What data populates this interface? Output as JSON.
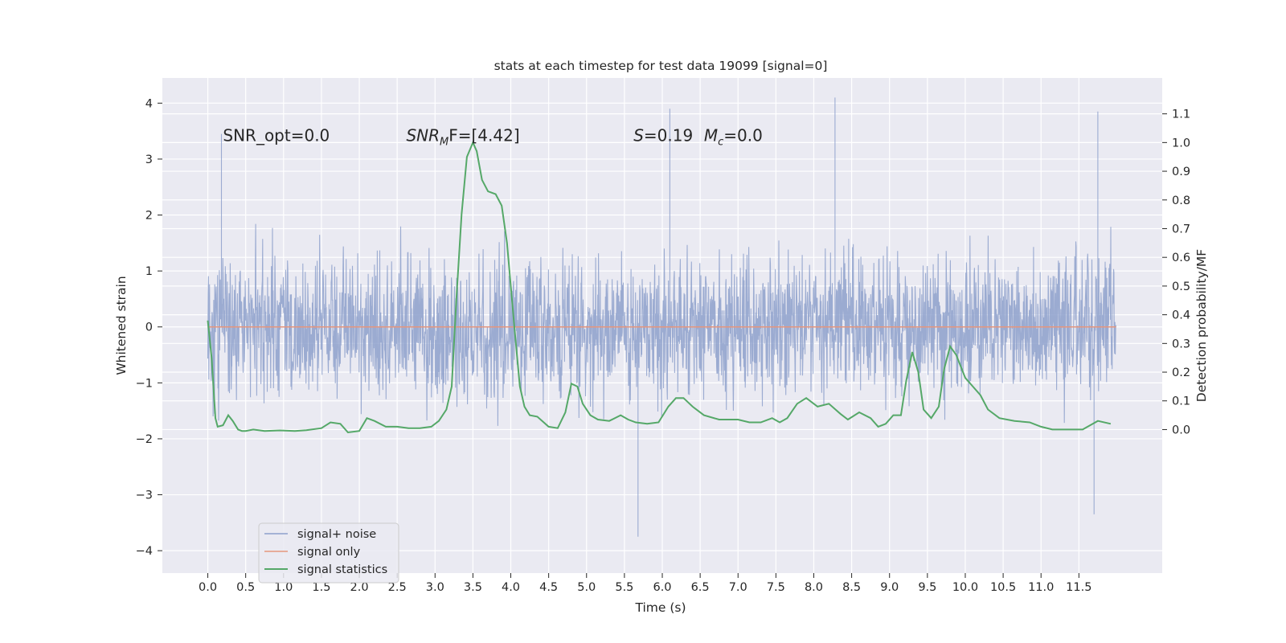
{
  "chart_data": {
    "type": "line",
    "title": "stats at each timestep for test data 19099 [signal=0]",
    "xlabel": "Time (s)",
    "ylabel": "Whitened strain",
    "ylabel_right": "Detection probability/MF",
    "xlim": [
      -0.6,
      12.6
    ],
    "ylim": [
      -4.4,
      4.45
    ],
    "ylim_right": [
      -0.5,
      1.225
    ],
    "x_ticks": [
      0.0,
      0.5,
      1.0,
      1.5,
      2.0,
      2.5,
      3.0,
      3.5,
      4.0,
      4.5,
      5.0,
      5.5,
      6.0,
      6.5,
      7.0,
      7.5,
      8.0,
      8.5,
      9.0,
      9.5,
      10.0,
      10.5,
      11.0,
      11.5
    ],
    "x_tick_labels": [
      "0.0",
      "0.5",
      "1.0",
      "1.5",
      "2.0",
      "2.5",
      "3.0",
      "3.5",
      "4.0",
      "4.5",
      "5.0",
      "5.5",
      "6.0",
      "6.5",
      "7.0",
      "7.5",
      "8.0",
      "8.5",
      "9.0",
      "9.5",
      "10.0",
      "10.5",
      "11.0",
      "11.5"
    ],
    "y_ticks": [
      4,
      3,
      2,
      1,
      0,
      -1,
      -2,
      -3,
      -4
    ],
    "y_tick_labels": [
      "4",
      "3",
      "2",
      "1",
      "0",
      "−1",
      "−2",
      "−3",
      "−4"
    ],
    "y_right_ticks": [
      1.1,
      1.0,
      0.9,
      0.8,
      0.7,
      0.6,
      0.5,
      0.4,
      0.3,
      0.2,
      0.1,
      0.0
    ],
    "y_right_tick_labels": [
      "1.1",
      "1.0",
      "0.9",
      "0.8",
      "0.7",
      "0.6",
      "0.5",
      "0.4",
      "0.3",
      "0.2",
      "0.1",
      "0.0"
    ],
    "grid": true,
    "legend_position": "lower-left",
    "series": [
      {
        "name": "signal+ noise",
        "axis": "left",
        "color": "#8da0cb",
        "x_range": [
          0.0,
          11.99
        ],
        "envelope": {
          "typical_amplitude": 1.4,
          "max": 4.1,
          "min": -3.75
        },
        "notable_peaks": [
          [
            0.18,
            3.45
          ],
          [
            6.1,
            3.9
          ],
          [
            8.28,
            4.1
          ],
          [
            11.75,
            3.85
          ],
          [
            5.68,
            -3.75
          ],
          [
            11.7,
            -3.35
          ]
        ]
      },
      {
        "name": "signal only",
        "axis": "left",
        "color": "#e5967d",
        "x": [
          0.0,
          11.99
        ],
        "y": [
          0.0,
          0.0
        ]
      },
      {
        "name": "signal statistics",
        "axis": "right",
        "color": "#55a868",
        "x": [
          0.0,
          0.05,
          0.1,
          0.13,
          0.2,
          0.27,
          0.33,
          0.4,
          0.45,
          0.5,
          0.6,
          0.75,
          0.95,
          1.15,
          1.3,
          1.5,
          1.62,
          1.75,
          1.85,
          2.0,
          2.1,
          2.2,
          2.35,
          2.5,
          2.65,
          2.8,
          2.95,
          3.05,
          3.15,
          3.22,
          3.28,
          3.35,
          3.42,
          3.5,
          3.55,
          3.62,
          3.7,
          3.8,
          3.88,
          3.95,
          4.05,
          4.12,
          4.18,
          4.25,
          4.35,
          4.5,
          4.62,
          4.72,
          4.8,
          4.88,
          4.95,
          5.05,
          5.15,
          5.3,
          5.45,
          5.55,
          5.65,
          5.8,
          5.95,
          6.08,
          6.18,
          6.28,
          6.4,
          6.55,
          6.75,
          7.0,
          7.15,
          7.3,
          7.45,
          7.55,
          7.65,
          7.78,
          7.9,
          8.05,
          8.2,
          8.35,
          8.45,
          8.6,
          8.75,
          8.85,
          8.95,
          9.05,
          9.15,
          9.22,
          9.3,
          9.38,
          9.45,
          9.55,
          9.65,
          9.72,
          9.8,
          9.88,
          10.0,
          10.1,
          10.2,
          10.3,
          10.45,
          10.65,
          10.85,
          11.0,
          11.15,
          11.35,
          11.55,
          11.75,
          11.92
        ],
        "y": [
          0.38,
          0.25,
          0.04,
          0.01,
          0.015,
          0.05,
          0.03,
          0.0,
          -0.005,
          -0.005,
          0.0,
          -0.005,
          -0.003,
          -0.005,
          -0.002,
          0.005,
          0.025,
          0.02,
          -0.01,
          -0.005,
          0.04,
          0.03,
          0.01,
          0.01,
          0.005,
          0.005,
          0.01,
          0.03,
          0.07,
          0.15,
          0.45,
          0.75,
          0.95,
          1.0,
          0.97,
          0.87,
          0.83,
          0.82,
          0.78,
          0.65,
          0.35,
          0.15,
          0.08,
          0.05,
          0.045,
          0.01,
          0.005,
          0.06,
          0.16,
          0.15,
          0.09,
          0.05,
          0.035,
          0.03,
          0.05,
          0.035,
          0.025,
          0.02,
          0.025,
          0.08,
          0.11,
          0.11,
          0.08,
          0.05,
          0.035,
          0.035,
          0.025,
          0.025,
          0.04,
          0.025,
          0.04,
          0.09,
          0.11,
          0.08,
          0.09,
          0.055,
          0.035,
          0.06,
          0.04,
          0.01,
          0.02,
          0.05,
          0.05,
          0.17,
          0.27,
          0.2,
          0.07,
          0.04,
          0.08,
          0.21,
          0.29,
          0.26,
          0.18,
          0.15,
          0.12,
          0.07,
          0.04,
          0.03,
          0.025,
          0.01,
          0.0,
          0.0,
          0.0,
          0.03,
          0.02
        ]
      }
    ],
    "annotations": [
      {
        "text": "SNR_opt=0.0",
        "x": 0.2,
        "y": 3.32
      },
      {
        "base": "SNR",
        "sub": "M",
        "tail": "F=[4.42]",
        "x": 2.62,
        "y": 3.32
      },
      {
        "base": "S",
        "tail": "=0.19",
        "x": 5.62,
        "y": 3.32
      },
      {
        "base": "M",
        "sub": "c",
        "tail": "=0.0",
        "x": 6.55,
        "y": 3.32
      }
    ]
  }
}
